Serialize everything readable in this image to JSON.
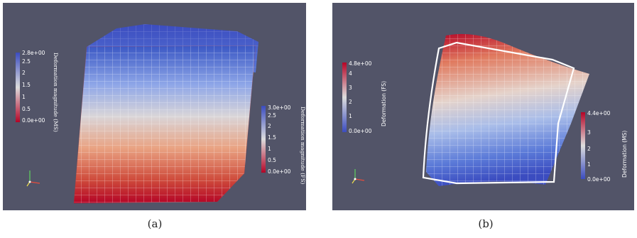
{
  "panel_a": {
    "caption": "(a)",
    "colorbar_ms": {
      "title": "Deformation magnitude (MS)",
      "ticks": [
        "2.8e+00",
        "2.5",
        "2",
        "1.5",
        "1",
        "0.5",
        "0.0e+00"
      ]
    },
    "colorbar_fs": {
      "title": "Deformation magnitude (FS)",
      "ticks": [
        "3.0e+00",
        "2.5",
        "2",
        "1.5",
        "1",
        "0.5",
        "0.0e+00"
      ]
    }
  },
  "panel_b": {
    "caption": "(b)",
    "colorbar_fs": {
      "title": "Deformation (FS)",
      "ticks": [
        "4.8e+00",
        "4",
        "3",
        "2",
        "1",
        "0.0e+00"
      ]
    },
    "colorbar_ms": {
      "title": "Deformation (MS)",
      "ticks": [
        "4.4e+00",
        "3",
        "2",
        "1",
        "0.0e+00"
      ]
    }
  },
  "colors": {
    "background": "#525468",
    "high": "#b40426",
    "mid": "#dddddd",
    "low": "#3b4cc0"
  }
}
